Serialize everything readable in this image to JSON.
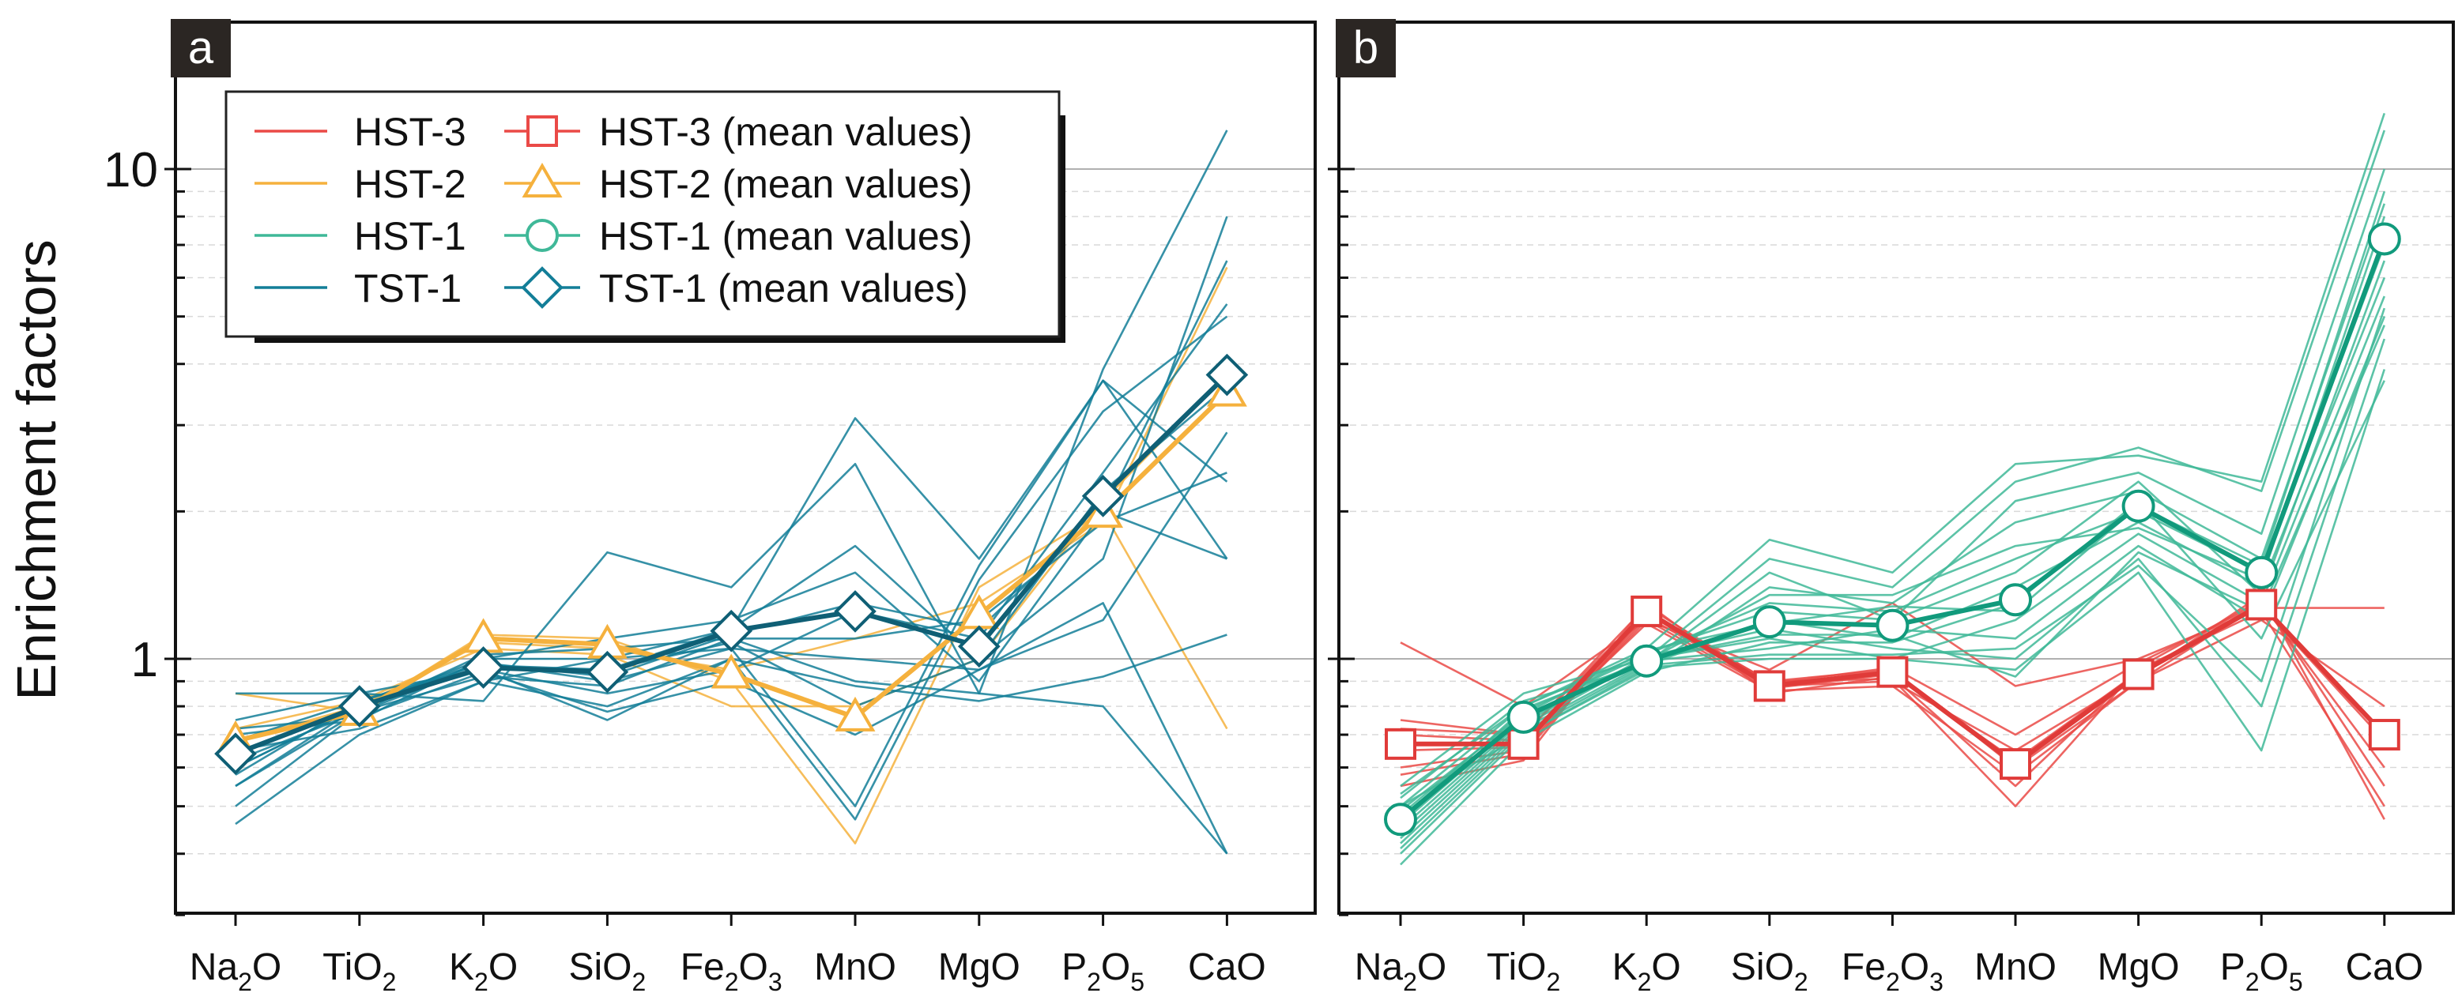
{
  "figure": {
    "ylabel": "Enrichment factors",
    "y_ticks": [
      {
        "value": 1,
        "label": "1"
      },
      {
        "value": 10,
        "label": "10"
      }
    ]
  },
  "colors": {
    "HST-3": "#ea4a47",
    "HST-2": "#f5b13d",
    "HST-1": "#3fb898",
    "TST-1": "#137e98",
    "mean_HST-1": "#119a7c",
    "mean_TST-1": "#0f5f75",
    "axis": "#111111",
    "reference_line": "#b0b0b0",
    "grid": "#d9d9d9",
    "panel_label_bg": "#2b2623"
  },
  "chart_data": [
    {
      "panel": "a",
      "type": "line",
      "scale_y": "log",
      "ylim": [
        0.3,
        18
      ],
      "title": "",
      "ylabel": "Enrichment factors",
      "categories": [
        {
          "base": "Na",
          "sub": "2",
          "tail": "O"
        },
        {
          "base": "TiO",
          "sub": "2",
          "tail": ""
        },
        {
          "base": "K",
          "sub": "2",
          "tail": "O"
        },
        {
          "base": "SiO",
          "sub": "2",
          "tail": ""
        },
        {
          "base": "Fe",
          "sub": "2",
          "tail": "O",
          "sub2": "3"
        },
        {
          "base": "MnO",
          "sub": "",
          "tail": ""
        },
        {
          "base": "MgO",
          "sub": "",
          "tail": ""
        },
        {
          "base": "P",
          "sub": "2",
          "tail": "O",
          "sub2": "5"
        },
        {
          "base": "CaO",
          "sub": "",
          "tail": ""
        }
      ],
      "legend": {
        "placement": "top-left",
        "entries": [
          {
            "label": "HST-3",
            "color": "#ea4a47",
            "marker": "none"
          },
          {
            "label": "HST-3 (mean values)",
            "color": "#ea4a47",
            "marker": "square"
          },
          {
            "label": "HST-2",
            "color": "#f5b13d",
            "marker": "none"
          },
          {
            "label": "HST-2 (mean values)",
            "color": "#f5b13d",
            "marker": "triangle"
          },
          {
            "label": "HST-1",
            "color": "#3fb898",
            "marker": "none"
          },
          {
            "label": "HST-1 (mean values)",
            "color": "#3fb898",
            "marker": "circle"
          },
          {
            "label": "TST-1",
            "color": "#137e98",
            "marker": "none"
          },
          {
            "label": "TST-1 (mean values)",
            "color": "#137e98",
            "marker": "diamond"
          }
        ]
      },
      "series": [
        {
          "name": "HST-2",
          "color": "#f5b13d",
          "values": [
            0.85,
            0.78,
            1.12,
            1.1,
            0.9,
            0.42,
            1.4,
            2.0,
            0.72
          ]
        },
        {
          "name": "HST-2",
          "color": "#f5b13d",
          "values": [
            0.68,
            0.8,
            1.08,
            1.05,
            0.95,
            1.1,
            1.3,
            1.9,
            6.3
          ]
        },
        {
          "name": "HST-2",
          "color": "#f5b13d",
          "values": [
            0.72,
            0.82,
            1.05,
            1.02,
            0.8,
            0.8,
            1.0,
            2.1,
            3.8
          ]
        },
        {
          "name": "TST-1",
          "color": "#137e98",
          "values": [
            0.85,
            0.85,
            0.82,
            1.65,
            1.4,
            2.5,
            0.85,
            3.9,
            12.0
          ]
        },
        {
          "name": "TST-1",
          "color": "#137e98",
          "values": [
            0.5,
            0.78,
            0.97,
            0.95,
            1.15,
            3.1,
            1.6,
            3.7,
            2.3
          ]
        },
        {
          "name": "TST-1",
          "color": "#137e98",
          "values": [
            0.46,
            0.7,
            0.9,
            1.0,
            1.15,
            1.7,
            1.0,
            1.6,
            8.0
          ]
        },
        {
          "name": "TST-1",
          "color": "#137e98",
          "values": [
            0.55,
            0.8,
            1.0,
            1.1,
            1.2,
            1.5,
            0.9,
            2.0,
            6.5
          ]
        },
        {
          "name": "TST-1",
          "color": "#137e98",
          "values": [
            0.58,
            0.82,
            0.98,
            0.9,
            1.05,
            0.5,
            1.55,
            3.7,
            1.6
          ]
        },
        {
          "name": "TST-1",
          "color": "#137e98",
          "values": [
            0.6,
            0.8,
            0.95,
            0.75,
            1.0,
            0.47,
            1.45,
            3.2,
            5.0
          ]
        },
        {
          "name": "TST-1",
          "color": "#137e98",
          "values": [
            0.75,
            0.85,
            0.95,
            0.85,
            0.95,
            1.25,
            1.1,
            2.4,
            5.3
          ]
        },
        {
          "name": "TST-1",
          "color": "#137e98",
          "values": [
            0.65,
            0.72,
            0.9,
            0.8,
            1.0,
            0.88,
            0.82,
            0.92,
            1.12
          ]
        },
        {
          "name": "TST-1",
          "color": "#137e98",
          "values": [
            0.62,
            0.78,
            0.92,
            0.88,
            1.1,
            0.9,
            0.85,
            0.8,
            0.4
          ]
        },
        {
          "name": "TST-1",
          "color": "#137e98",
          "values": [
            0.7,
            0.75,
            1.0,
            1.0,
            1.05,
            1.0,
            0.95,
            1.3,
            0.4
          ]
        },
        {
          "name": "TST-1",
          "color": "#137e98",
          "values": [
            0.55,
            0.78,
            1.02,
            1.05,
            1.1,
            1.1,
            1.2,
            1.9,
            2.4
          ]
        },
        {
          "name": "TST-1",
          "color": "#137e98",
          "values": [
            0.68,
            0.82,
            0.96,
            0.95,
            1.08,
            0.8,
            1.0,
            2.2,
            3.6
          ]
        },
        {
          "name": "TST-1",
          "color": "#137e98",
          "values": [
            0.6,
            0.8,
            0.98,
            0.92,
            1.12,
            1.3,
            1.15,
            2.0,
            1.6
          ]
        },
        {
          "name": "TST-1",
          "color": "#137e98",
          "values": [
            0.72,
            0.76,
            0.94,
            0.78,
            0.9,
            0.7,
            0.95,
            1.2,
            2.9
          ]
        }
      ],
      "mean_series": [
        {
          "name": "HST-2 (mean values)",
          "color": "#f5b13d",
          "marker": "triangle",
          "values": [
            0.68,
            0.78,
            1.1,
            1.07,
            0.93,
            0.76,
            1.23,
            1.98,
            3.5
          ]
        },
        {
          "name": "TST-1 (mean values)",
          "color": "#0f5f75",
          "marker": "diamond",
          "values": [
            0.64,
            0.8,
            0.96,
            0.94,
            1.14,
            1.25,
            1.06,
            2.15,
            3.8
          ]
        }
      ]
    },
    {
      "panel": "b",
      "type": "line",
      "scale_y": "log",
      "ylim": [
        0.3,
        18
      ],
      "title": "",
      "ylabel": "",
      "categories": [
        {
          "base": "Na",
          "sub": "2",
          "tail": "O"
        },
        {
          "base": "TiO",
          "sub": "2",
          "tail": ""
        },
        {
          "base": "K",
          "sub": "2",
          "tail": "O"
        },
        {
          "base": "SiO",
          "sub": "2",
          "tail": ""
        },
        {
          "base": "Fe",
          "sub": "2",
          "tail": "O",
          "sub2": "3"
        },
        {
          "base": "MnO",
          "sub": "",
          "tail": ""
        },
        {
          "base": "MgO",
          "sub": "",
          "tail": ""
        },
        {
          "base": "P",
          "sub": "2",
          "tail": "O",
          "sub2": "5"
        },
        {
          "base": "CaO",
          "sub": "",
          "tail": ""
        }
      ],
      "series": [
        {
          "name": "HST-3",
          "color": "#ea4a47",
          "values": [
            1.08,
            0.8,
            1.2,
            0.95,
            1.3,
            0.88,
            1.0,
            1.27,
            1.27
          ]
        },
        {
          "name": "HST-3",
          "color": "#ea4a47",
          "values": [
            0.75,
            0.7,
            1.25,
            0.9,
            0.95,
            0.6,
            0.9,
            1.3,
            0.7
          ]
        },
        {
          "name": "HST-3",
          "color": "#ea4a47",
          "values": [
            0.55,
            0.62,
            1.3,
            0.85,
            0.92,
            0.55,
            0.95,
            1.25,
            0.5
          ]
        },
        {
          "name": "HST-3",
          "color": "#ea4a47",
          "values": [
            0.6,
            0.65,
            1.22,
            0.88,
            0.9,
            0.65,
            0.92,
            1.35,
            0.47
          ]
        },
        {
          "name": "HST-3",
          "color": "#ea4a47",
          "values": [
            0.7,
            0.68,
            1.18,
            0.86,
            0.88,
            0.58,
            0.9,
            1.2,
            0.8
          ]
        },
        {
          "name": "HST-3",
          "color": "#ea4a47",
          "values": [
            0.65,
            0.66,
            1.2,
            0.87,
            0.93,
            0.62,
            0.94,
            1.28,
            0.68
          ]
        },
        {
          "name": "HST-3",
          "color": "#ea4a47",
          "values": [
            0.58,
            0.64,
            1.24,
            0.9,
            0.91,
            0.5,
            0.96,
            1.32,
            0.55
          ]
        },
        {
          "name": "HST-3",
          "color": "#ea4a47",
          "values": [
            0.72,
            0.7,
            1.28,
            0.89,
            0.96,
            0.7,
            0.98,
            1.3,
            0.6
          ]
        },
        {
          "name": "HST-1",
          "color": "#3fb898",
          "values": [
            0.5,
            0.8,
            1.05,
            1.75,
            1.5,
            2.5,
            2.6,
            2.3,
            13.0
          ]
        },
        {
          "name": "HST-1",
          "color": "#3fb898",
          "values": [
            0.45,
            0.75,
            1.0,
            1.6,
            1.4,
            2.3,
            2.7,
            2.2,
            12.0
          ]
        },
        {
          "name": "HST-1",
          "color": "#3fb898",
          "values": [
            0.42,
            0.72,
            0.98,
            1.5,
            1.2,
            2.1,
            2.4,
            1.8,
            10.0
          ]
        },
        {
          "name": "HST-1",
          "color": "#3fb898",
          "values": [
            0.4,
            0.7,
            0.95,
            1.4,
            1.3,
            1.9,
            2.2,
            1.6,
            8.5
          ]
        },
        {
          "name": "HST-1",
          "color": "#3fb898",
          "values": [
            0.48,
            0.78,
            1.02,
            1.3,
            1.25,
            1.6,
            2.0,
            1.5,
            7.0
          ]
        },
        {
          "name": "HST-1",
          "color": "#3fb898",
          "values": [
            0.52,
            0.82,
            0.97,
            1.2,
            1.1,
            1.4,
            1.9,
            1.4,
            6.0
          ]
        },
        {
          "name": "HST-1",
          "color": "#3fb898",
          "values": [
            0.55,
            0.85,
            1.0,
            1.1,
            1.0,
            1.2,
            1.8,
            1.3,
            5.5
          ]
        },
        {
          "name": "HST-1",
          "color": "#3fb898",
          "values": [
            0.46,
            0.76,
            0.99,
            1.05,
            1.15,
            1.1,
            1.7,
            1.2,
            5.0
          ]
        },
        {
          "name": "HST-1",
          "color": "#3fb898",
          "values": [
            0.44,
            0.74,
            1.01,
            1.15,
            1.05,
            1.0,
            1.6,
            0.8,
            4.5
          ]
        },
        {
          "name": "HST-1",
          "color": "#3fb898",
          "values": [
            0.5,
            0.7,
            0.96,
            1.0,
            1.0,
            0.95,
            1.5,
            0.65,
            3.9
          ]
        },
        {
          "name": "HST-1",
          "color": "#3fb898",
          "values": [
            0.38,
            0.68,
            0.94,
            1.08,
            1.08,
            1.3,
            2.1,
            1.1,
            3.7
          ]
        },
        {
          "name": "HST-1",
          "color": "#3fb898",
          "values": [
            0.53,
            0.8,
            1.03,
            1.25,
            1.2,
            1.5,
            2.3,
            1.35,
            6.5
          ]
        },
        {
          "name": "HST-1",
          "color": "#3fb898",
          "values": [
            0.47,
            0.79,
            0.99,
            1.35,
            1.35,
            1.7,
            1.85,
            1.45,
            8.0
          ]
        },
        {
          "name": "HST-1",
          "color": "#3fb898",
          "values": [
            0.43,
            0.73,
            1.0,
            1.12,
            1.12,
            0.92,
            1.65,
            1.25,
            4.8
          ]
        },
        {
          "name": "HST-1",
          "color": "#3fb898",
          "values": [
            0.41,
            0.71,
            0.97,
            1.02,
            1.02,
            1.05,
            1.55,
            0.9,
            5.2
          ]
        },
        {
          "name": "HST-1",
          "color": "#3fb898",
          "values": [
            0.49,
            0.77,
            1.04,
            1.18,
            1.28,
            1.25,
            2.05,
            1.55,
            9.0
          ]
        }
      ],
      "mean_series": [
        {
          "name": "HST-3 (mean values)",
          "color": "#e03b39",
          "marker": "square",
          "values": [
            0.67,
            0.67,
            1.25,
            0.88,
            0.94,
            0.61,
            0.93,
            1.29,
            0.7
          ]
        },
        {
          "name": "HST-1 (mean values)",
          "color": "#119a7c",
          "marker": "circle",
          "values": [
            0.47,
            0.76,
            0.99,
            1.19,
            1.17,
            1.32,
            2.05,
            1.5,
            7.2
          ]
        }
      ]
    }
  ]
}
